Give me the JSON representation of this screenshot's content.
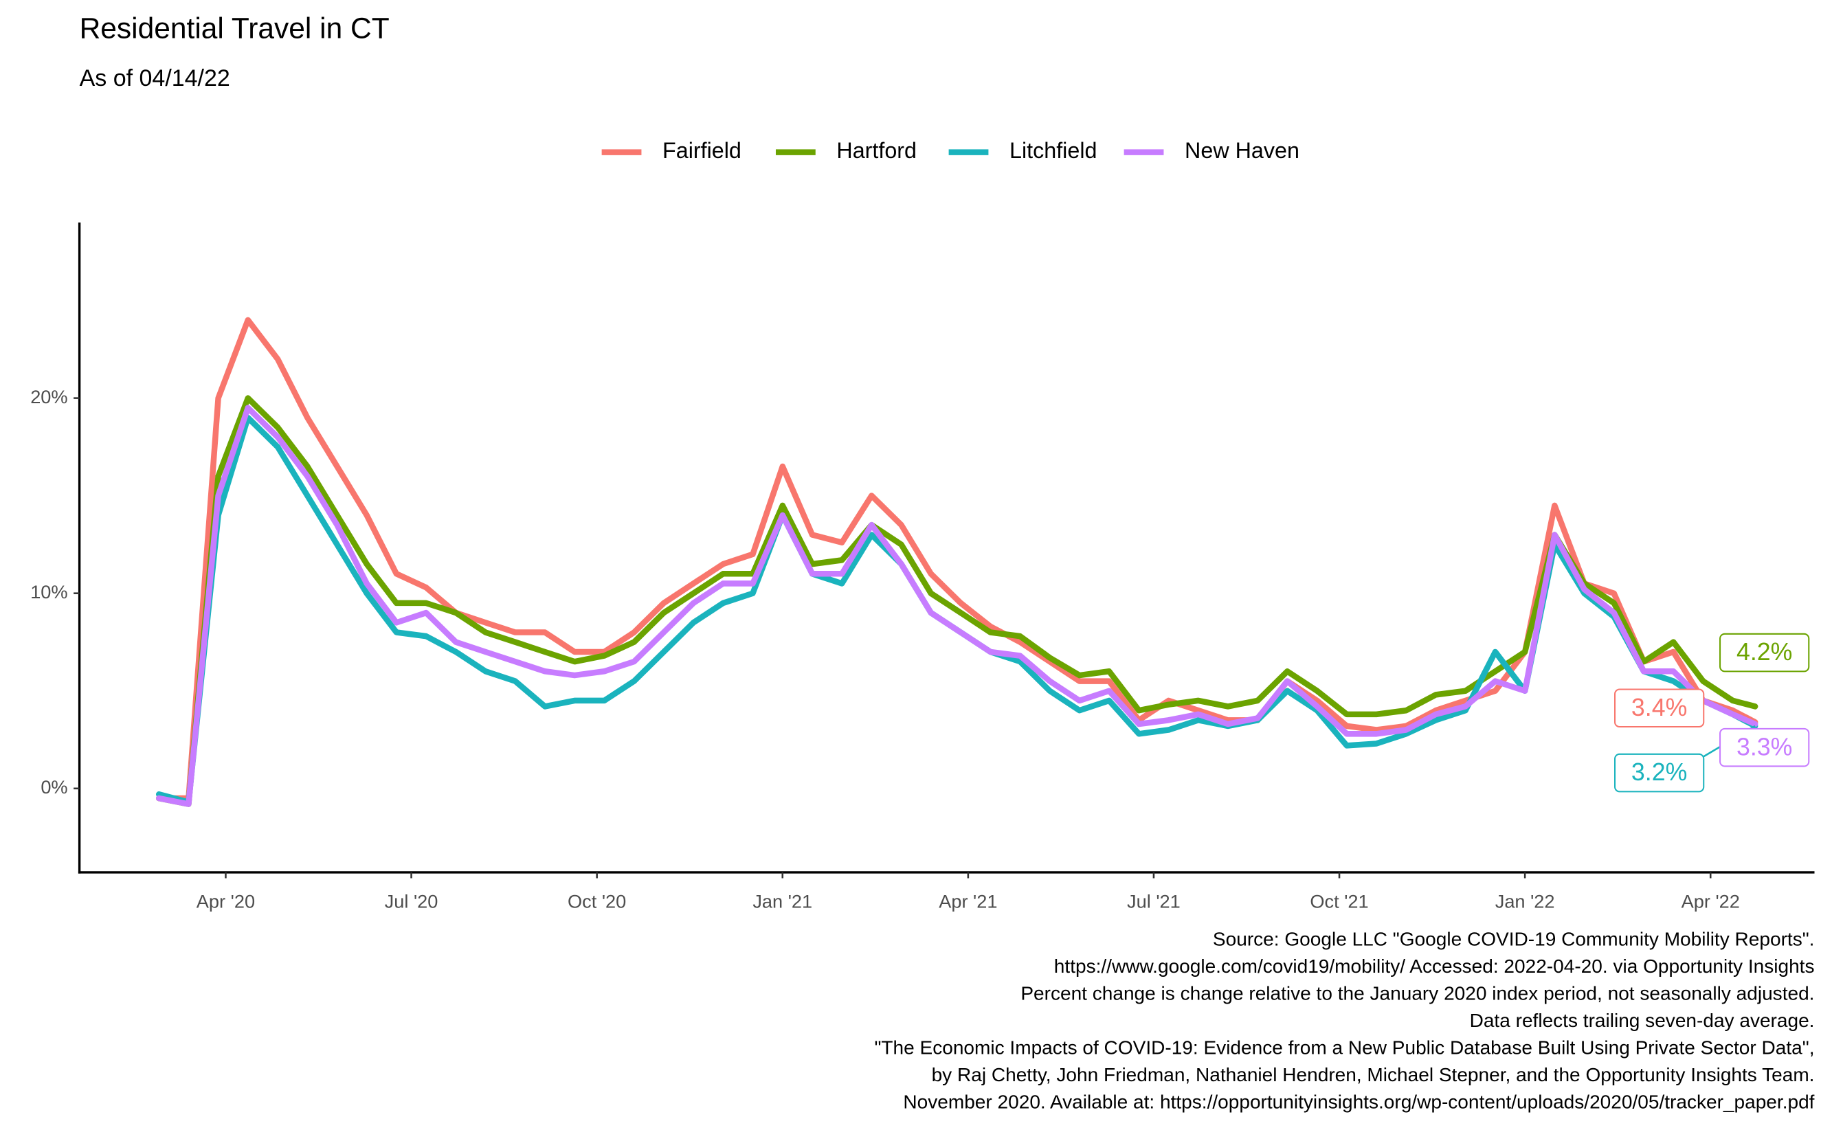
{
  "chart_data": {
    "type": "line",
    "title": "Residential Travel in CT",
    "subtitle": "As of 04/14/22",
    "caption": [
      "Source: Google LLC \"Google COVID-19 Community Mobility Reports\".",
      "https://www.google.com/covid19/mobility/ Accessed: 2022-04-20. via Opportunity Insights",
      "Percent change is change relative to the January 2020 index period, not seasonally adjusted.",
      "Data reflects trailing seven-day average.",
      "\"The Economic Impacts of COVID-19: Evidence from a New Public Database Built Using Private Sector Data\",",
      "by Raj Chetty, John Friedman, Nathaniel Hendren, Michael Stepner, and the Opportunity Insights Team.",
      "November 2020. Available at: https://opportunityinsights.org/wp-content/uploads/2020/05/tracker_paper.pdf"
    ],
    "x": [
      2020.16,
      2020.2,
      2020.24,
      2020.28,
      2020.32,
      2020.36,
      2020.4,
      2020.44,
      2020.48,
      2020.52,
      2020.56,
      2020.6,
      2020.64,
      2020.68,
      2020.72,
      2020.76,
      2020.8,
      2020.84,
      2020.88,
      2020.92,
      2020.96,
      2021.0,
      2021.04,
      2021.08,
      2021.12,
      2021.16,
      2021.2,
      2021.24,
      2021.28,
      2021.32,
      2021.36,
      2021.4,
      2021.44,
      2021.48,
      2021.52,
      2021.56,
      2021.6,
      2021.64,
      2021.68,
      2021.72,
      2021.76,
      2021.8,
      2021.84,
      2021.88,
      2021.92,
      2021.96,
      2022.0,
      2022.04,
      2022.08,
      2022.12,
      2022.16,
      2022.2,
      2022.24,
      2022.28,
      2022.31
    ],
    "xlim": [
      2020.053,
      2022.39
    ],
    "xticks": [
      {
        "value": 2020.25,
        "label": "Apr '20"
      },
      {
        "value": 2020.5,
        "label": "Jul '20"
      },
      {
        "value": 2020.75,
        "label": "Oct '20"
      },
      {
        "value": 2021.0,
        "label": "Jan '21"
      },
      {
        "value": 2021.25,
        "label": "Apr '21"
      },
      {
        "value": 2021.5,
        "label": "Jul '21"
      },
      {
        "value": 2021.75,
        "label": "Oct '21"
      },
      {
        "value": 2022.0,
        "label": "Jan '22"
      },
      {
        "value": 2022.25,
        "label": "Apr '22"
      }
    ],
    "ylim": [
      -4.3,
      29
    ],
    "yticks": [
      {
        "value": 0,
        "label": "0%"
      },
      {
        "value": 10,
        "label": "10%"
      },
      {
        "value": 20,
        "label": "20%"
      }
    ],
    "grid": false,
    "legend": "top",
    "series": [
      {
        "name": "Fairfield",
        "color": "#F8766D",
        "values": [
          -0.5,
          -0.5,
          20,
          24,
          22,
          19,
          16.5,
          14,
          11,
          10.3,
          9,
          8.5,
          8,
          8,
          7,
          7,
          8,
          9.5,
          10.5,
          11.5,
          12,
          16.5,
          13,
          12.6,
          15,
          13.5,
          11,
          9.5,
          8.3,
          7.5,
          6.5,
          5.5,
          5.5,
          3.5,
          4.5,
          4,
          3.5,
          3.5,
          5.5,
          4.5,
          3.2,
          3,
          3.2,
          4,
          4.5,
          5,
          7,
          14.5,
          10.5,
          10,
          6.5,
          7,
          4.5,
          4,
          3.4
        ],
        "value_labels": [
          null,
          null,
          null,
          null,
          null,
          null,
          null,
          null,
          null,
          null,
          null,
          null,
          null,
          null,
          null,
          null,
          null,
          null,
          null,
          null,
          null,
          null,
          null,
          null,
          null,
          null,
          null,
          null,
          null,
          null,
          null,
          null,
          null,
          null,
          null,
          null,
          null,
          null,
          null,
          null,
          null,
          null,
          null,
          null,
          null,
          null,
          null,
          null,
          null,
          null,
          null,
          null,
          null,
          null,
          "3.4%"
        ]
      },
      {
        "name": "Hartford",
        "color": "#6BA300",
        "values": [
          -0.5,
          -0.8,
          16,
          20,
          18.5,
          16.5,
          14,
          11.5,
          9.5,
          9.5,
          9,
          8,
          7.5,
          7,
          6.5,
          6.8,
          7.5,
          9,
          10,
          11,
          11,
          14.5,
          11.5,
          11.7,
          13.5,
          12.5,
          10,
          9,
          8,
          7.8,
          6.7,
          5.8,
          6,
          4,
          4.3,
          4.5,
          4.2,
          4.5,
          6,
          5,
          3.8,
          3.8,
          4,
          4.8,
          5,
          6,
          7,
          13,
          10.5,
          9.5,
          6.5,
          7.5,
          5.5,
          4.5,
          4.2
        ],
        "value_labels": [
          null,
          null,
          null,
          null,
          null,
          null,
          null,
          null,
          null,
          null,
          null,
          null,
          null,
          null,
          null,
          null,
          null,
          null,
          null,
          null,
          null,
          null,
          null,
          null,
          null,
          null,
          null,
          null,
          null,
          null,
          null,
          null,
          null,
          null,
          null,
          null,
          null,
          null,
          null,
          null,
          null,
          null,
          null,
          null,
          null,
          null,
          null,
          null,
          null,
          null,
          null,
          null,
          null,
          null,
          "4.2%"
        ]
      },
      {
        "name": "Litchfield",
        "color": "#1AB3BD",
        "values": [
          -0.3,
          -0.7,
          14,
          19,
          17.5,
          15,
          12.5,
          10,
          8,
          7.8,
          7,
          6,
          5.5,
          4.2,
          4.5,
          4.5,
          5.5,
          7,
          8.5,
          9.5,
          10,
          14,
          11,
          10.5,
          13,
          11.5,
          9,
          8,
          7,
          6.5,
          5,
          4,
          4.5,
          2.8,
          3,
          3.5,
          3.2,
          3.5,
          5,
          4,
          2.2,
          2.3,
          2.8,
          3.5,
          4,
          7,
          5,
          12.5,
          10,
          8.8,
          6,
          5.5,
          4.5,
          3.8,
          3.2
        ],
        "value_labels": [
          null,
          null,
          null,
          null,
          null,
          null,
          null,
          null,
          null,
          null,
          null,
          null,
          null,
          null,
          null,
          null,
          null,
          null,
          null,
          null,
          null,
          null,
          null,
          null,
          null,
          null,
          null,
          null,
          null,
          null,
          null,
          null,
          null,
          null,
          null,
          null,
          null,
          null,
          null,
          null,
          null,
          null,
          null,
          null,
          null,
          null,
          null,
          null,
          null,
          null,
          null,
          null,
          null,
          null,
          "3.2%"
        ]
      },
      {
        "name": "New Haven",
        "color": "#C77CFF",
        "values": [
          -0.5,
          -0.8,
          15,
          19.5,
          18,
          16,
          13.5,
          10.5,
          8.5,
          9,
          7.5,
          7,
          6.5,
          6,
          5.8,
          6,
          6.5,
          8,
          9.5,
          10.5,
          10.5,
          14,
          11,
          11,
          13.5,
          11.5,
          9,
          8,
          7,
          6.8,
          5.5,
          4.5,
          5,
          3.3,
          3.5,
          3.8,
          3.3,
          3.6,
          5.5,
          4.2,
          2.8,
          2.8,
          3,
          3.8,
          4.2,
          5.5,
          5,
          13,
          10.2,
          9,
          6,
          6,
          4.5,
          3.8,
          3.3
        ],
        "value_labels": [
          null,
          null,
          null,
          null,
          null,
          null,
          null,
          null,
          null,
          null,
          null,
          null,
          null,
          null,
          null,
          null,
          null,
          null,
          null,
          null,
          null,
          null,
          null,
          null,
          null,
          null,
          null,
          null,
          null,
          null,
          null,
          null,
          null,
          null,
          null,
          null,
          null,
          null,
          null,
          null,
          null,
          null,
          null,
          null,
          null,
          null,
          null,
          null,
          null,
          null,
          null,
          null,
          null,
          null,
          "3.3%"
        ]
      }
    ]
  }
}
